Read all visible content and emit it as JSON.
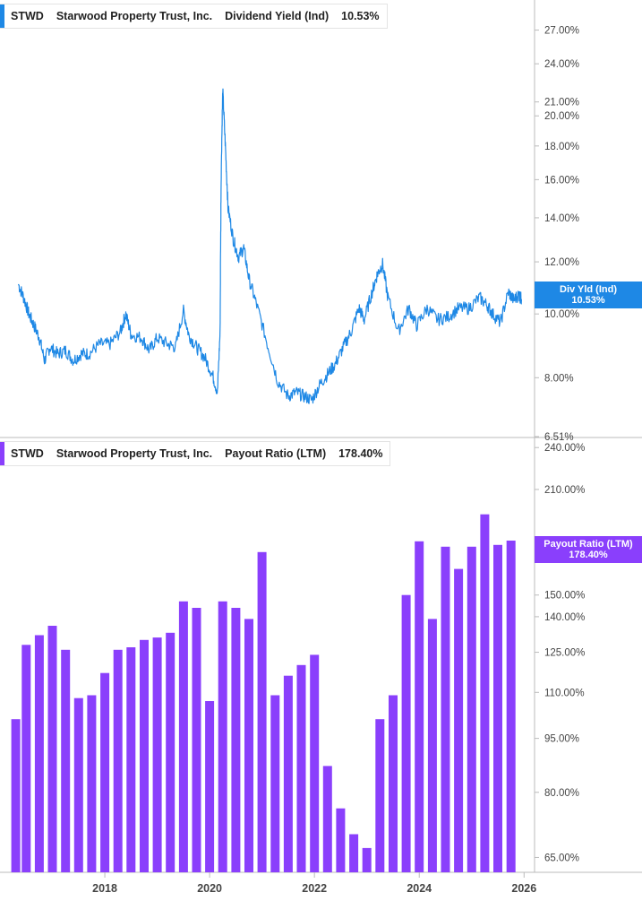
{
  "colors": {
    "yield": "#1e88e5",
    "payout": "#8a3ffc",
    "grid": "#e5e5e5",
    "axis": "#bbbbbb"
  },
  "panels": {
    "yield": {
      "ticker": "STWD",
      "company": "Starwood Property Trust, Inc.",
      "metric": "Dividend Yield (Ind)",
      "value": "10.53%",
      "tag_label": "Div Yld (Ind)",
      "tag_value": "10.53%"
    },
    "payout": {
      "ticker": "STWD",
      "company": "Starwood Property Trust, Inc.",
      "metric": "Payout Ratio (LTM)",
      "value": "178.40%",
      "tag_label": "Payout Ratio (LTM)",
      "tag_value": "178.40%"
    }
  },
  "chart_data": [
    {
      "type": "line",
      "title": "STWD Starwood Property Trust, Inc. Dividend Yield (Ind) 10.53%",
      "series": [
        {
          "name": "Div Yld (Ind)",
          "unit": "%",
          "points": [
            [
              2016.35,
              11.1
            ],
            [
              2016.45,
              10.6
            ],
            [
              2016.55,
              10.0
            ],
            [
              2016.65,
              9.6
            ],
            [
              2016.75,
              9.2
            ],
            [
              2016.85,
              8.5
            ],
            [
              2016.95,
              8.9
            ],
            [
              2017.1,
              8.7
            ],
            [
              2017.25,
              8.8
            ],
            [
              2017.4,
              8.5
            ],
            [
              2017.55,
              8.7
            ],
            [
              2017.7,
              8.7
            ],
            [
              2017.9,
              9.0
            ],
            [
              2018.1,
              9.0
            ],
            [
              2018.3,
              9.4
            ],
            [
              2018.4,
              10.0
            ],
            [
              2018.5,
              9.3
            ],
            [
              2018.7,
              9.2
            ],
            [
              2018.85,
              8.8
            ],
            [
              2019.0,
              9.2
            ],
            [
              2019.2,
              9.0
            ],
            [
              2019.35,
              8.9
            ],
            [
              2019.5,
              10.1
            ],
            [
              2019.6,
              9.3
            ],
            [
              2019.75,
              8.9
            ],
            [
              2019.9,
              8.6
            ],
            [
              2020.05,
              8.1
            ],
            [
              2020.15,
              7.6
            ],
            [
              2020.2,
              9.4
            ],
            [
              2020.22,
              16.0
            ],
            [
              2020.25,
              21.8
            ],
            [
              2020.3,
              18.0
            ],
            [
              2020.35,
              14.5
            ],
            [
              2020.45,
              13.0
            ],
            [
              2020.55,
              12.2
            ],
            [
              2020.65,
              12.6
            ],
            [
              2020.75,
              11.3
            ],
            [
              2020.9,
              10.3
            ],
            [
              2021.1,
              9.0
            ],
            [
              2021.3,
              7.9
            ],
            [
              2021.5,
              7.5
            ],
            [
              2021.65,
              7.6
            ],
            [
              2021.8,
              7.5
            ],
            [
              2021.95,
              7.4
            ],
            [
              2022.1,
              7.8
            ],
            [
              2022.25,
              8.1
            ],
            [
              2022.4,
              8.4
            ],
            [
              2022.55,
              8.9
            ],
            [
              2022.7,
              9.4
            ],
            [
              2022.85,
              10.2
            ],
            [
              2022.95,
              9.8
            ],
            [
              2023.1,
              10.8
            ],
            [
              2023.2,
              11.5
            ],
            [
              2023.3,
              11.9
            ],
            [
              2023.4,
              10.6
            ],
            [
              2023.6,
              9.4
            ],
            [
              2023.8,
              10.2
            ],
            [
              2023.95,
              9.6
            ],
            [
              2024.15,
              10.2
            ],
            [
              2024.35,
              9.8
            ],
            [
              2024.55,
              9.9
            ],
            [
              2024.75,
              10.2
            ],
            [
              2024.95,
              10.2
            ],
            [
              2025.15,
              10.6
            ],
            [
              2025.3,
              10.3
            ],
            [
              2025.4,
              10.0
            ],
            [
              2025.55,
              9.7
            ],
            [
              2025.7,
              10.8
            ],
            [
              2025.8,
              10.5
            ],
            [
              2025.9,
              10.7
            ],
            [
              2025.95,
              10.53
            ]
          ]
        }
      ],
      "y_scale": "log",
      "ylim": [
        6.51,
        30.0
      ],
      "y_ticks": [
        6.51,
        8.0,
        10.0,
        12.0,
        14.0,
        16.0,
        18.0,
        20.0,
        21.0,
        24.0,
        27.0
      ],
      "y_tick_labels": [
        "6.51%",
        "8.00%",
        "10.00%",
        "12.00%",
        "14.00%",
        "16.00%",
        "18.00%",
        "20.00%",
        "21.00%",
        "24.00%",
        "27.00%"
      ]
    },
    {
      "type": "bar",
      "title": "STWD Starwood Property Trust, Inc. Payout Ratio (LTM) 178.40%",
      "series": [
        {
          "name": "Payout Ratio (LTM)",
          "unit": "%",
          "x": [
            2016.3,
            2016.5,
            2016.75,
            2017.0,
            2017.25,
            2017.5,
            2017.75,
            2018.0,
            2018.25,
            2018.5,
            2018.75,
            2019.0,
            2019.25,
            2019.5,
            2019.75,
            2020.0,
            2020.25,
            2020.5,
            2020.75,
            2021.0,
            2021.25,
            2021.5,
            2021.75,
            2022.0,
            2022.25,
            2022.5,
            2022.75,
            2023.0,
            2023.25,
            2023.5,
            2023.75,
            2024.0,
            2024.25,
            2024.5,
            2024.75,
            2025.0,
            2025.25,
            2025.5,
            2025.75
          ],
          "values": [
            101,
            128,
            132,
            136,
            126,
            108,
            109,
            117,
            126,
            127,
            130,
            131,
            133,
            147,
            144,
            107,
            147,
            144,
            139,
            172,
            109,
            116,
            120,
            124,
            87,
            76,
            70,
            67,
            101,
            109,
            150,
            178,
            139,
            175,
            163,
            175,
            194,
            176,
            178.4
          ]
        }
      ],
      "y_scale": "log",
      "ylim": [
        62.0,
        245.0
      ],
      "y_ticks": [
        65,
        80,
        95,
        110,
        125,
        140,
        150,
        210,
        240
      ],
      "y_tick_labels": [
        "65.00%",
        "80.00%",
        "95.00%",
        "110.00%",
        "125.00%",
        "140.00%",
        "150.00%",
        "210.00%",
        "240.00%"
      ]
    }
  ],
  "x_axis": {
    "range": [
      2016.0,
      2026.2
    ],
    "ticks": [
      2018,
      2020,
      2022,
      2024,
      2026
    ],
    "labels": [
      "2018",
      "2020",
      "2022",
      "2024",
      "2026"
    ]
  }
}
